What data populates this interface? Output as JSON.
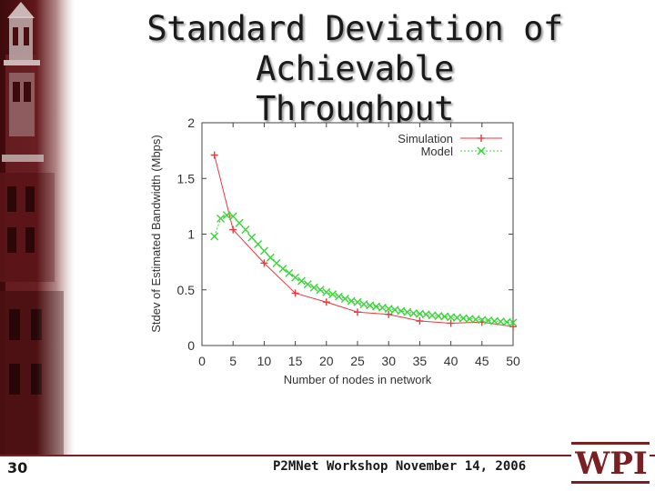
{
  "title": {
    "line1": "Standard Deviation of Achievable",
    "line2": "Throughput"
  },
  "footer": {
    "slide_number": "30",
    "text": "P2MNet Workshop November 14, 2006",
    "logo_text": "WPI"
  },
  "colors": {
    "accent": "#7a1f22",
    "simulation": "#e8393f",
    "model": "#39d639"
  },
  "chart_data": {
    "type": "line",
    "xlabel": "Number of nodes in network",
    "ylabel": "Stdev of Estimated Bandwidth (Mbps)",
    "xlim": [
      0,
      50
    ],
    "ylim": [
      0,
      2
    ],
    "xticks": [
      0,
      5,
      10,
      15,
      20,
      25,
      30,
      35,
      40,
      45,
      50
    ],
    "yticks": [
      0,
      0.5,
      1,
      1.5,
      2
    ],
    "grid": false,
    "legend_position": "top-right",
    "series": [
      {
        "name": "Simulation",
        "marker": "plus",
        "color": "#e8393f",
        "x": [
          2,
          5,
          10,
          15,
          20,
          25,
          30,
          35,
          40,
          45,
          50
        ],
        "y": [
          1.71,
          1.04,
          0.74,
          0.47,
          0.39,
          0.3,
          0.28,
          0.22,
          0.2,
          0.21,
          0.17
        ]
      },
      {
        "name": "Model",
        "marker": "cross",
        "color": "#39d639",
        "x": [
          2,
          3,
          4,
          5,
          6,
          7,
          8,
          9,
          10,
          11,
          12,
          13,
          14,
          15,
          16,
          17,
          18,
          19,
          20,
          21,
          22,
          23,
          24,
          25,
          26,
          27,
          28,
          29,
          30,
          31,
          32,
          33,
          34,
          35,
          36,
          37,
          38,
          39,
          40,
          41,
          42,
          43,
          44,
          45,
          46,
          47,
          48,
          49,
          50
        ],
        "y": [
          0.98,
          1.14,
          1.17,
          1.16,
          1.1,
          1.04,
          0.97,
          0.91,
          0.85,
          0.79,
          0.74,
          0.69,
          0.65,
          0.61,
          0.58,
          0.55,
          0.52,
          0.5,
          0.48,
          0.46,
          0.44,
          0.42,
          0.4,
          0.39,
          0.37,
          0.36,
          0.35,
          0.34,
          0.33,
          0.32,
          0.31,
          0.3,
          0.29,
          0.285,
          0.28,
          0.27,
          0.265,
          0.26,
          0.255,
          0.25,
          0.245,
          0.24,
          0.235,
          0.23,
          0.225,
          0.22,
          0.215,
          0.21,
          0.205
        ]
      }
    ]
  }
}
